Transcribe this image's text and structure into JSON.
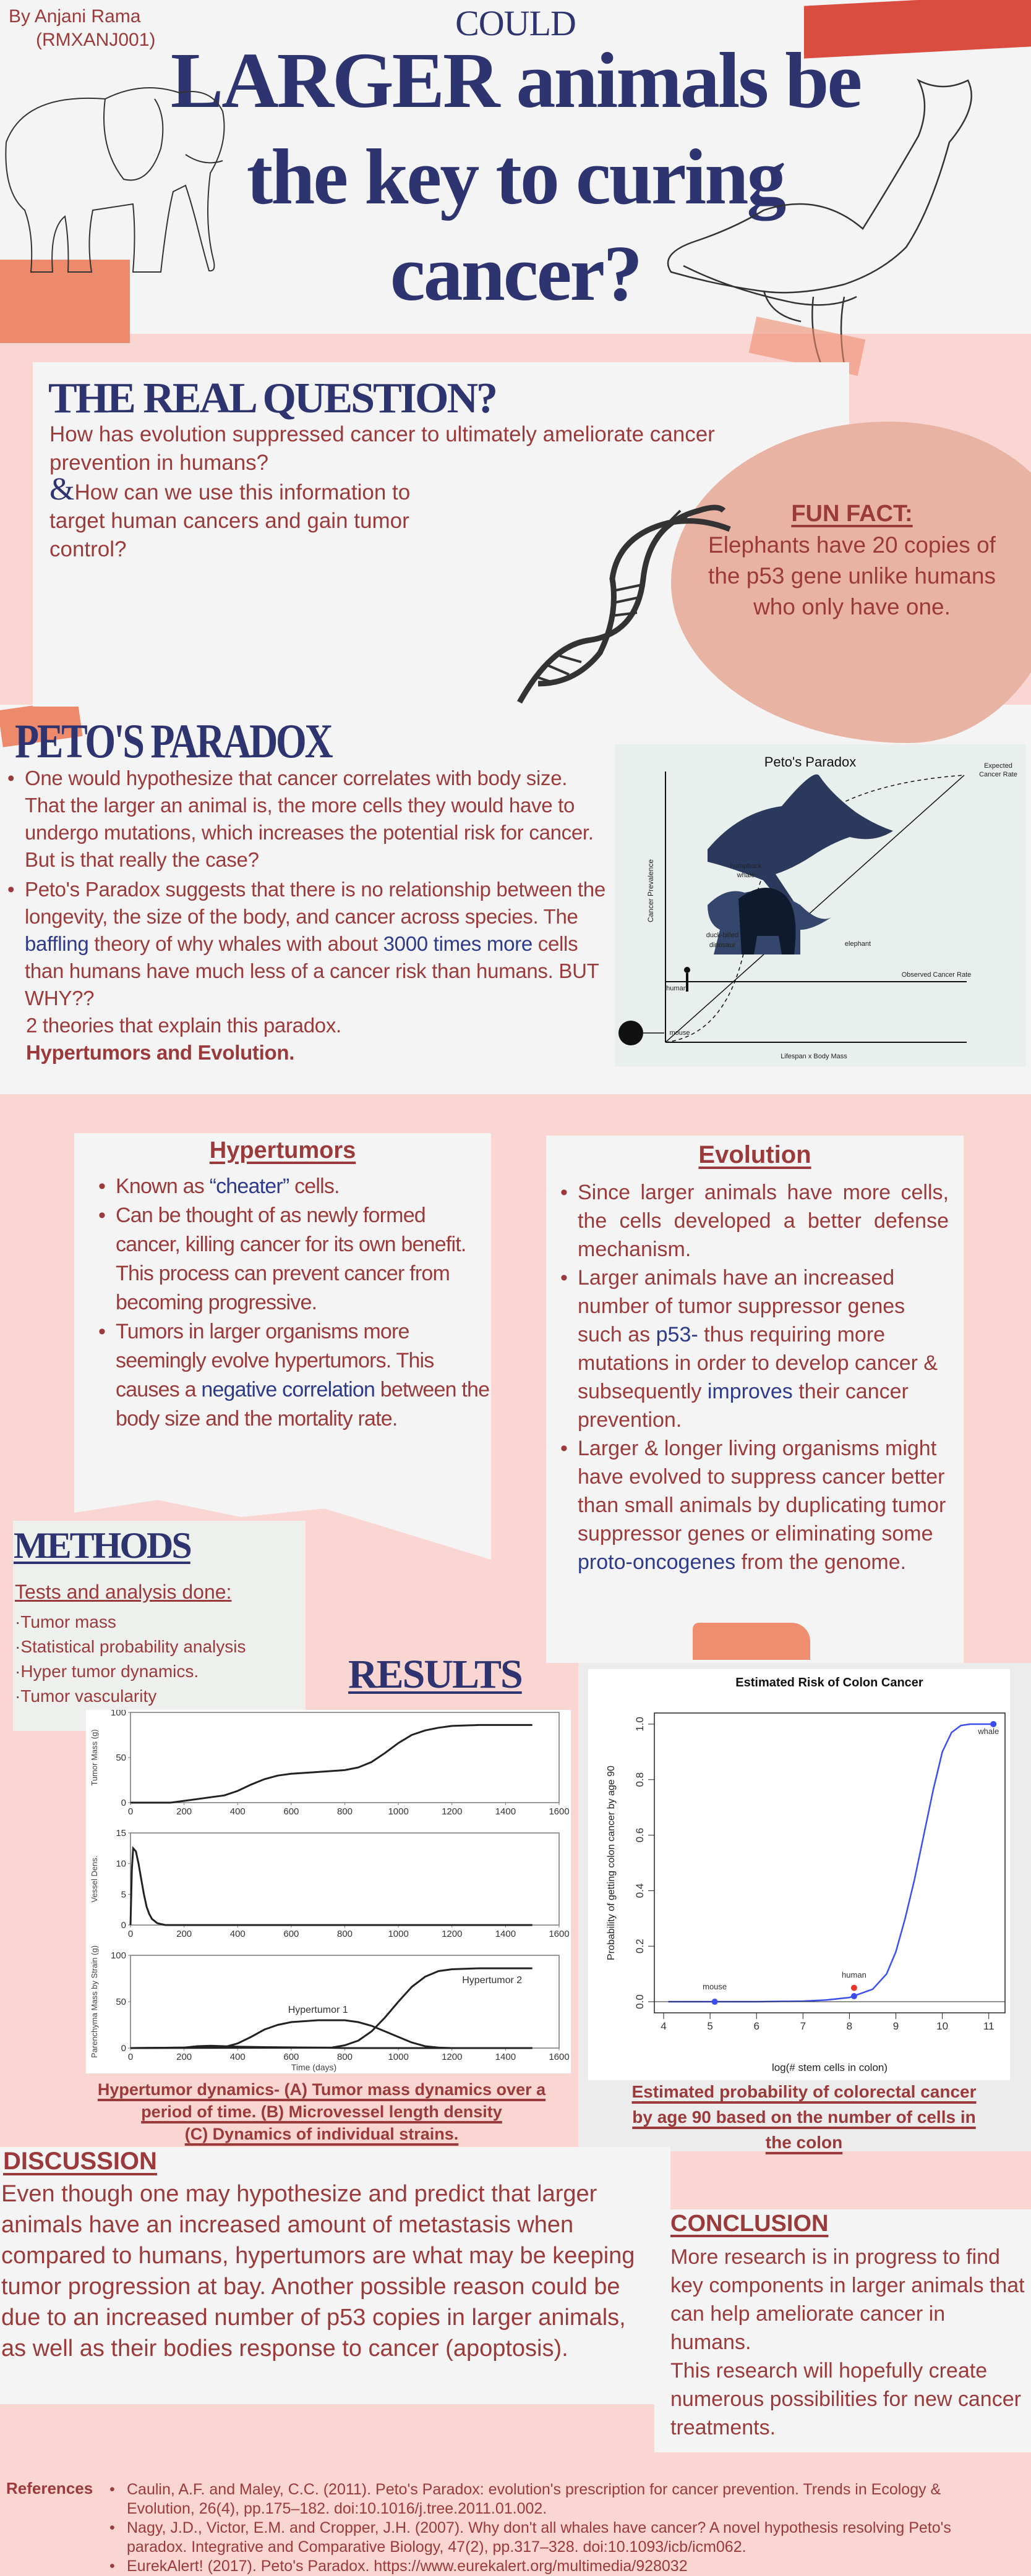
{
  "colors": {
    "navy": "#2e3470",
    "maroon": "#9b3a3a",
    "highlight": "#2e3a8a",
    "pink": "#f9d6d2",
    "panel": "#f4f4f4",
    "blob": "#e8b3a3",
    "accent_orange": "#e8674f",
    "curve_blue": "#3b4ef0",
    "human_red": "#e8372c"
  },
  "header": {
    "author": "By Anjani Rama",
    "student_id": "(RMXANJ001)",
    "kicker": "COULD",
    "title_lines": [
      "LARGER animals be",
      "the key to curing",
      "cancer?"
    ]
  },
  "question": {
    "heading": "THE REAL QUESTION?",
    "line1": "How has evolution suppressed cancer to ultimately ameliorate cancer prevention in humans?",
    "ampersand": "&",
    "line2": "How can we use this information to target human cancers and gain tumor control?"
  },
  "fun_fact": {
    "heading": "FUN FACT:",
    "text": "Elephants have 20 copies of the p53 gene unlike humans who only have one."
  },
  "petos": {
    "heading": "PETO'S PARADOX",
    "bullet1": "One would hypothesize that cancer correlates with body size. That the larger an animal is, the more cells they would have to undergo mutations, which increases the potential risk for cancer. But is that really the case?",
    "bullet2_a": "Peto's Paradox suggests that there is no relationship between the longevity, the size of the body, and cancer across species. The ",
    "bullet2_hl1": "baffling",
    "bullet2_b": " theory of why whales with about ",
    "bullet2_hl2": "3000 times more",
    "bullet2_c": " cells than humans have much less of a cancer risk than humans. BUT WHY??",
    "theories": "2 theories that explain this paradox.",
    "theories_bold": "Hypertumors and Evolution.",
    "diagram": {
      "title": "Peto's Paradox",
      "expected": [
        "Expected",
        "Cancer Rate"
      ],
      "observed": "Observed Cancer Rate",
      "whale": [
        "humpback",
        "whale"
      ],
      "dinosaur": [
        "duck-billed",
        "dinosaur"
      ],
      "elephant": "elephant",
      "human": "human",
      "mouse": "mouse",
      "ylabel": "Cancer Prevalence",
      "xlabel": "Lifespan x Body Mass"
    }
  },
  "hypertumors": {
    "heading": "Hypertumors",
    "b1_a": "Known as ",
    "b1_hl": "“cheater”",
    "b1_b": " cells.",
    "b2": "Can be thought of as newly formed cancer, killing cancer for its own benefit. This process can prevent cancer from becoming progressive.",
    "b3_a": "Tumors in larger organisms more seemingly evolve hypertumors. This causes a ",
    "b3_hl": "negative correlation",
    "b3_b": " between the body size and the mortality rate."
  },
  "evolution": {
    "heading": "Evolution",
    "b1": "Since larger animals have more cells, the cells developed a better defense mechanism.",
    "b2_a": "Larger animals have an increased number of tumor suppressor genes such as ",
    "b2_hl1": "p53-",
    "b2_b": " thus requiring more mutations in order to develop cancer & subsequently ",
    "b2_hl2": "improves",
    "b2_c": " their cancer prevention.",
    "b3_a": "Larger & longer living organisms might have evolved to suppress cancer better than small animals by duplicating tumor suppressor genes or eliminating some ",
    "b3_hl": "proto-oncogenes",
    "b3_b": " from the genome."
  },
  "methods": {
    "heading": "METHODS",
    "subheading": "Tests and analysis done:",
    "items": [
      "·Tumor mass",
      "·Statistical probability analysis",
      "·Hyper tumor dynamics.",
      "·Tumor vascularity"
    ]
  },
  "results": {
    "heading": "RESULTS",
    "caption_left": [
      "Hypertumor dynamics- (A) Tumor mass dynamics over a",
      "period of time. (B) Microvessel length density",
      "(C) Dynamics of individual strains."
    ],
    "caption_right": [
      "Estimated probability of colorectal cancer",
      "by age 90 based on the number of cells in",
      "the colon"
    ]
  },
  "chart_data": [
    {
      "type": "line",
      "panel": "A",
      "xlim": [
        0,
        1600
      ],
      "ylim": [
        0,
        100
      ],
      "xticks": [
        0,
        200,
        400,
        600,
        800,
        1000,
        1200,
        1400,
        1600
      ],
      "yticks": [
        0,
        50,
        100
      ],
      "ylabel": "Tumor Mass (g)",
      "xlabel": "",
      "series": [
        {
          "x": [
            0,
            150,
            200,
            250,
            300,
            350,
            400,
            450,
            500,
            550,
            600,
            700,
            800,
            850,
            900,
            950,
            1000,
            1050,
            1100,
            1150,
            1200,
            1300,
            1500
          ],
          "y": [
            0,
            0,
            2,
            4,
            6,
            8,
            13,
            20,
            26,
            30,
            32,
            34,
            36,
            39,
            45,
            55,
            66,
            75,
            80,
            83,
            85,
            86,
            86
          ]
        }
      ]
    },
    {
      "type": "line",
      "panel": "B",
      "xlim": [
        0,
        1600
      ],
      "ylim": [
        0,
        15
      ],
      "xticks": [
        0,
        200,
        400,
        600,
        800,
        1000,
        1200,
        1400,
        1600
      ],
      "yticks": [
        0,
        5,
        10,
        15
      ],
      "ylabel": "Vessel Dens.",
      "xlabel": "",
      "series": [
        {
          "x": [
            0,
            5,
            10,
            20,
            30,
            40,
            50,
            60,
            70,
            80,
            100,
            130,
            160,
            1500
          ],
          "y": [
            0,
            9,
            12.5,
            12,
            10,
            7.5,
            5,
            3,
            1.8,
            1,
            0.3,
            0,
            0,
            0
          ]
        }
      ]
    },
    {
      "type": "line",
      "panel": "C",
      "xlim": [
        0,
        1600
      ],
      "ylim": [
        0,
        100
      ],
      "xticks": [
        0,
        200,
        400,
        600,
        800,
        1000,
        1200,
        1400,
        1600
      ],
      "yticks": [
        0,
        50,
        100
      ],
      "ylabel": "Parenchyma Mass by Strain (g)",
      "xlabel": "Time (days)",
      "series": [
        {
          "name": "Hypertumor 1",
          "x": [
            0,
            350,
            400,
            450,
            500,
            550,
            600,
            700,
            800,
            850,
            900,
            950,
            1000,
            1050,
            1100,
            1150,
            1200,
            1500
          ],
          "y": [
            0,
            1,
            5,
            12,
            20,
            25,
            28,
            30,
            30,
            28,
            24,
            18,
            12,
            6,
            2,
            0.5,
            0,
            0
          ]
        },
        {
          "name": "Hypertumor 2",
          "x": [
            0,
            750,
            800,
            850,
            900,
            950,
            1000,
            1050,
            1100,
            1150,
            1200,
            1300,
            1500
          ],
          "y": [
            0,
            0.5,
            3,
            8,
            18,
            33,
            50,
            66,
            77,
            83,
            85,
            86,
            86
          ]
        },
        {
          "x": [
            0,
            200,
            250,
            300,
            350,
            400,
            500,
            700,
            800,
            1500
          ],
          "y": [
            0,
            0.5,
            2,
            2.5,
            2,
            1.5,
            1,
            0.5,
            0,
            0
          ]
        }
      ]
    },
    {
      "type": "line",
      "title": "Estimated Risk of Colon Cancer",
      "xlabel": "log(# stem cells in colon)",
      "ylabel": "Probability of getting colon cancer by age 90",
      "xlim": [
        3.8,
        11.35
      ],
      "ylim": [
        -0.04,
        1.04
      ],
      "xticks": [
        4,
        5,
        6,
        7,
        8,
        9,
        10,
        11
      ],
      "yticks": [
        0.0,
        0.2,
        0.4,
        0.6,
        0.8,
        1.0
      ],
      "series": [
        {
          "x": [
            4.1,
            5,
            6,
            7,
            7.5,
            8,
            8.5,
            8.8,
            9,
            9.2,
            9.4,
            9.6,
            9.8,
            10,
            10.2,
            10.4,
            10.6,
            11.1
          ],
          "y": [
            0,
            0,
            0,
            0.002,
            0.006,
            0.015,
            0.045,
            0.1,
            0.18,
            0.3,
            0.44,
            0.6,
            0.76,
            0.9,
            0.97,
            0.995,
            1,
            1
          ]
        }
      ],
      "points": [
        {
          "label": "mouse",
          "x": 5.1,
          "y": 0.0,
          "color": "#3b4ef0"
        },
        {
          "label": "human",
          "x": 8.1,
          "y": 0.02,
          "color": "#3b4ef0"
        },
        {
          "label": "",
          "x": 8.1,
          "y": 0.05,
          "color": "#e8372c"
        },
        {
          "label": "whale",
          "x": 11.1,
          "y": 1.0,
          "color": "#3b4ef0"
        }
      ]
    }
  ],
  "discussion": {
    "heading": "DISCUSSION",
    "text": "Even though one may hypothesize and predict that larger animals have an increased amount of metastasis when compared to humans, hypertumors are what may be keeping tumor progression at bay. Another possible reason could be due to an increased number of p53 copies in larger animals, as well as their bodies response to cancer (apoptosis)."
  },
  "conclusion": {
    "heading": "CONCLUSION",
    "p1": "More research is in progress to find key components in larger animals that can help ameliorate cancer in humans.",
    "p2": "This research will hopefully create numerous possibilities for new cancer treatments."
  },
  "references": {
    "label": "References",
    "items": [
      "Caulin, A.F. and Maley, C.C. (2011). Peto's Paradox: evolution's prescription for cancer prevention. Trends in Ecology & Evolution, 26(4), pp.175–182. doi:10.1016/j.tree.2011.01.002.",
      "Nagy, J.D., Victor, E.M. and Cropper, J.H. (2007). Why don't all whales have cancer? A novel hypothesis resolving Peto's paradox. Integrative and Comparative Biology, 47(2), pp.317–328. doi:10.1093/icb/icm062.",
      "EurekAlert! (2017). Peto's Paradox.  https://www.eurekalert.org/multimedia/928032"
    ]
  }
}
